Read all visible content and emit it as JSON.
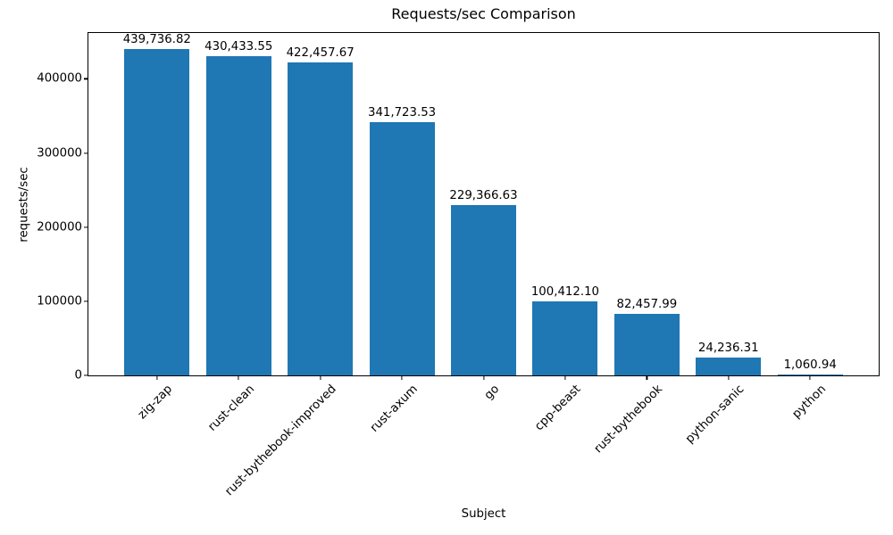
{
  "chart_data": {
    "type": "bar",
    "title": "Requests/sec Comparison",
    "xlabel": "Subject",
    "ylabel": "requests/sec",
    "categories": [
      "zig-zap",
      "rust-clean",
      "rust-bythebook-improved",
      "rust-axum",
      "go",
      "cpp-beast",
      "rust-bythebook",
      "python-sanic",
      "python"
    ],
    "values": [
      439736.82,
      430433.55,
      422457.67,
      341723.53,
      229366.63,
      100412.1,
      82457.99,
      24236.31,
      1060.94
    ],
    "value_labels": [
      "439,736.82",
      "430,433.55",
      "422,457.67",
      "341,723.53",
      "229,366.63",
      "100,412.10",
      "82,457.99",
      "24,236.31",
      "1,060.94"
    ],
    "yticks": [
      0,
      100000,
      200000,
      300000,
      400000
    ],
    "ytick_labels": [
      "0",
      "100000",
      "200000",
      "300000",
      "400000"
    ],
    "ylim": [
      0,
      461723.66
    ],
    "xlim": [
      -0.84,
      8.84
    ],
    "bar_width_units": 0.8,
    "bar_color": "#1f77b4",
    "grid": false,
    "legend_visible": false,
    "x_label_rotation_deg": 45
  }
}
